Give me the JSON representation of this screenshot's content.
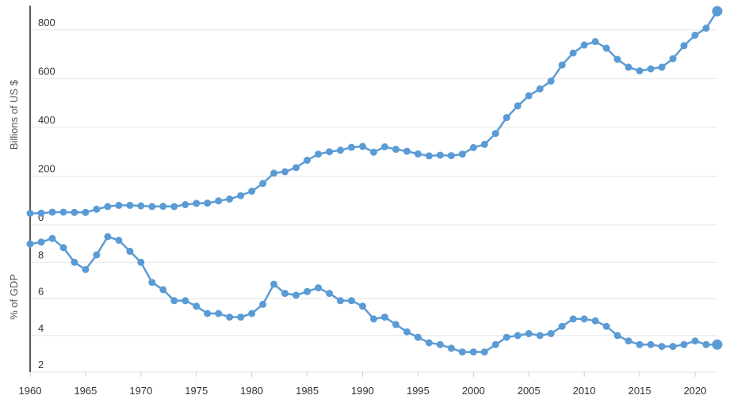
{
  "colors": {
    "series": "#5b9bd5",
    "grid": "#e6e6e6",
    "axis": "#222222",
    "text": "#333333"
  },
  "chart_data": [
    {
      "type": "line",
      "title": "",
      "xlabel": "",
      "ylabel": "Billions of US $",
      "ylim": [
        0,
        900
      ],
      "yticks": [
        0,
        200,
        400,
        600,
        800
      ],
      "xlim": [
        1960,
        2022
      ],
      "grid": true,
      "x": [
        1960,
        1961,
        1962,
        1963,
        1964,
        1965,
        1966,
        1967,
        1968,
        1969,
        1970,
        1971,
        1972,
        1973,
        1974,
        1975,
        1976,
        1977,
        1978,
        1979,
        1980,
        1981,
        1982,
        1983,
        1984,
        1985,
        1986,
        1987,
        1988,
        1989,
        1990,
        1991,
        1992,
        1993,
        1994,
        1995,
        1996,
        1997,
        1998,
        1999,
        2000,
        2001,
        2002,
        2003,
        2004,
        2005,
        2006,
        2007,
        2008,
        2009,
        2010,
        2011,
        2012,
        2013,
        2014,
        2015,
        2016,
        2017,
        2018,
        2019,
        2020,
        2021,
        2022
      ],
      "series": [
        {
          "values": [
            47,
            48,
            52,
            52,
            51,
            51,
            64,
            75,
            80,
            80,
            78,
            75,
            76,
            75,
            83,
            88,
            89,
            98,
            106,
            120,
            138,
            170,
            212,
            218,
            235,
            265,
            290,
            300,
            306,
            318,
            322,
            298,
            320,
            310,
            302,
            291,
            283,
            286,
            284,
            290,
            317,
            330,
            375,
            440,
            488,
            530,
            558,
            590,
            656,
            705,
            738,
            752,
            725,
            679,
            647,
            632,
            640,
            647,
            682,
            735,
            778,
            807,
            877
          ]
        }
      ]
    },
    {
      "type": "line",
      "title": "",
      "xlabel": "",
      "ylabel": "% of GDP",
      "ylim": [
        2,
        10
      ],
      "yticks": [
        2,
        4,
        6,
        8
      ],
      "xlim": [
        1960,
        2022
      ],
      "xticks": [
        1960,
        1965,
        1970,
        1975,
        1980,
        1985,
        1990,
        1995,
        2000,
        2005,
        2010,
        2015,
        2020
      ],
      "grid": true,
      "x": [
        1960,
        1961,
        1962,
        1963,
        1964,
        1965,
        1966,
        1967,
        1968,
        1969,
        1970,
        1971,
        1972,
        1973,
        1974,
        1975,
        1976,
        1977,
        1978,
        1979,
        1980,
        1981,
        1982,
        1983,
        1984,
        1985,
        1986,
        1987,
        1988,
        1989,
        1990,
        1991,
        1992,
        1993,
        1994,
        1995,
        1996,
        1997,
        1998,
        1999,
        2000,
        2001,
        2002,
        2003,
        2004,
        2005,
        2006,
        2007,
        2008,
        2009,
        2010,
        2011,
        2012,
        2013,
        2014,
        2015,
        2016,
        2017,
        2018,
        2019,
        2020,
        2021,
        2022
      ],
      "series": [
        {
          "values": [
            9.0,
            9.1,
            9.3,
            8.8,
            8.0,
            7.6,
            8.4,
            9.4,
            9.2,
            8.6,
            8.0,
            6.9,
            6.5,
            5.9,
            5.9,
            5.6,
            5.2,
            5.2,
            5.0,
            5.0,
            5.2,
            5.7,
            6.8,
            6.3,
            6.2,
            6.4,
            6.6,
            6.3,
            5.9,
            5.9,
            5.6,
            4.9,
            5.0,
            4.6,
            4.2,
            3.9,
            3.6,
            3.5,
            3.3,
            3.1,
            3.1,
            3.1,
            3.5,
            3.9,
            4.0,
            4.1,
            4.0,
            4.1,
            4.5,
            4.9,
            4.9,
            4.8,
            4.5,
            4.0,
            3.7,
            3.5,
            3.5,
            3.4,
            3.4,
            3.5,
            3.7,
            3.5,
            3.5
          ]
        }
      ]
    }
  ]
}
